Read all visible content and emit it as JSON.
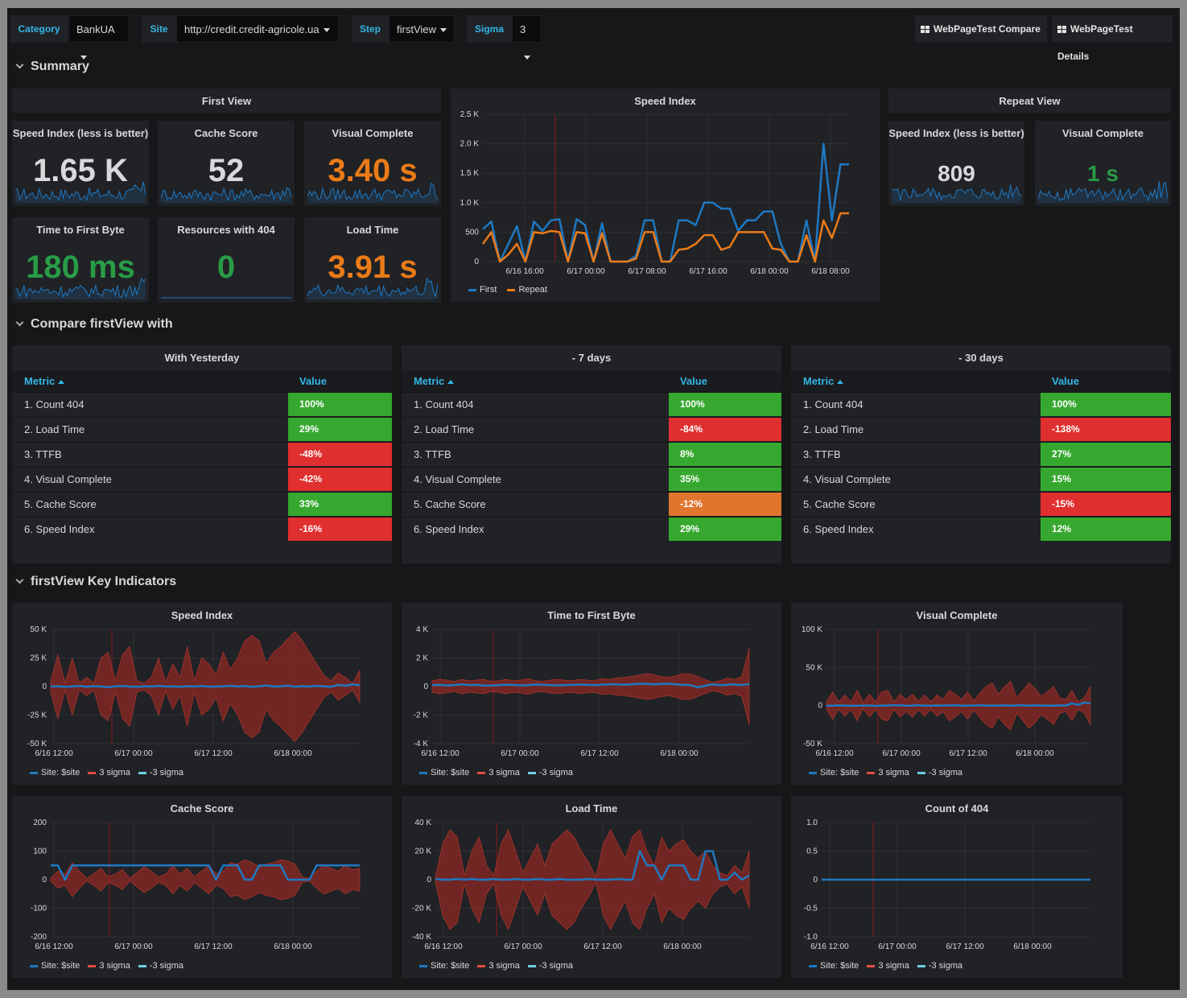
{
  "variables": [
    {
      "label": "Category",
      "value": "BankUA"
    },
    {
      "label": "Site",
      "value": "http://credit.credit-agricole.ua"
    },
    {
      "label": "Step",
      "value": "firstView"
    },
    {
      "label": "Sigma",
      "value": "3"
    }
  ],
  "links": [
    "WebPageTest Compare",
    "WebPageTest Details"
  ],
  "rows": {
    "summary": "Summary",
    "compare": "Compare firstView with",
    "key": "firstView Key Indicators"
  },
  "colors": {
    "green": "#299c46",
    "orange": "#eb7b18",
    "red": "#d44a3a",
    "blue": "#1f78c1",
    "cyan": "#6ed0e0",
    "text": "#d8d9da",
    "accent": "#33b5e5"
  },
  "summary": {
    "first_view_header": "First View",
    "repeat_view_header": "Repeat View",
    "first_stats": [
      {
        "title": "Speed Index (less is better)",
        "value": "1.65 K",
        "color": "#d8d9da"
      },
      {
        "title": "Cache Score",
        "value": "52",
        "color": "#d8d9da"
      },
      {
        "title": "Visual Complete",
        "value": "3.40 s",
        "color": "#eb7b18"
      },
      {
        "title": "Time to First Byte",
        "value": "180 ms",
        "color": "#299c46"
      },
      {
        "title": "Resources with 404",
        "value": "0",
        "color": "#299c46"
      },
      {
        "title": "Load Time",
        "value": "3.91 s",
        "color": "#eb7b18"
      }
    ],
    "repeat_stats": [
      {
        "title": "Speed Index (less is better)",
        "value": "809",
        "color": "#d8d9da"
      },
      {
        "title": "Visual Complete",
        "value": "1 s",
        "color": "#299c46"
      }
    ]
  },
  "compare": {
    "col_metric": "Metric",
    "col_value": "Value",
    "tables": [
      {
        "title": "With Yesterday",
        "rows": [
          {
            "metric": "1. Count 404",
            "value": "100%",
            "status": "green"
          },
          {
            "metric": "2. Load Time",
            "value": "29%",
            "status": "green"
          },
          {
            "metric": "3. TTFB",
            "value": "-48%",
            "status": "red"
          },
          {
            "metric": "4. Visual Complete",
            "value": "-42%",
            "status": "red"
          },
          {
            "metric": "5. Cache Score",
            "value": "33%",
            "status": "green"
          },
          {
            "metric": "6. Speed Index",
            "value": "-16%",
            "status": "red"
          }
        ]
      },
      {
        "title": "- 7 days",
        "rows": [
          {
            "metric": "1. Count 404",
            "value": "100%",
            "status": "green"
          },
          {
            "metric": "2. Load Time",
            "value": "-84%",
            "status": "red"
          },
          {
            "metric": "3. TTFB",
            "value": "8%",
            "status": "green"
          },
          {
            "metric": "4. Visual Complete",
            "value": "35%",
            "status": "green"
          },
          {
            "metric": "5. Cache Score",
            "value": "-12%",
            "status": "orange"
          },
          {
            "metric": "6. Speed Index",
            "value": "29%",
            "status": "green"
          }
        ]
      },
      {
        "title": "- 30 days",
        "rows": [
          {
            "metric": "1. Count 404",
            "value": "100%",
            "status": "green"
          },
          {
            "metric": "2. Load Time",
            "value": "-138%",
            "status": "red"
          },
          {
            "metric": "3. TTFB",
            "value": "27%",
            "status": "green"
          },
          {
            "metric": "4. Visual Complete",
            "value": "15%",
            "status": "green"
          },
          {
            "metric": "5. Cache Score",
            "value": "-15%",
            "status": "red"
          },
          {
            "metric": "6. Speed Index",
            "value": "12%",
            "status": "green"
          }
        ]
      }
    ]
  },
  "chart_data": [
    {
      "type": "line",
      "title": "Speed Index",
      "y_ticks": [
        "2.5 K",
        "2.0 K",
        "1.5 K",
        "1.0 K",
        "500",
        "0"
      ],
      "ylim": [
        0,
        2500
      ],
      "x_ticks": [
        "6/16 16:00",
        "6/17 00:00",
        "6/17 08:00",
        "6/17 16:00",
        "6/18 00:00",
        "6/18 08:00"
      ],
      "series": [
        {
          "name": "First",
          "color": "#1f78c1",
          "values": [
            550,
            680,
            0,
            300,
            600,
            0,
            680,
            520,
            700,
            720,
            0,
            720,
            620,
            0,
            650,
            0,
            0,
            0,
            100,
            700,
            700,
            0,
            0,
            700,
            700,
            620,
            1000,
            1000,
            900,
            900,
            520,
            700,
            700,
            850,
            850,
            300,
            0,
            0,
            700,
            0,
            2000,
            700,
            1650,
            1650
          ]
        },
        {
          "name": "Repeat",
          "color": "#eb7b18",
          "values": [
            300,
            500,
            0,
            120,
            300,
            0,
            500,
            480,
            520,
            500,
            0,
            500,
            480,
            0,
            480,
            0,
            0,
            0,
            50,
            500,
            500,
            0,
            0,
            200,
            220,
            300,
            450,
            450,
            200,
            250,
            500,
            500,
            500,
            500,
            220,
            200,
            0,
            0,
            450,
            0,
            700,
            400,
            820,
            820
          ]
        }
      ]
    },
    {
      "type": "area",
      "title": "Speed Index",
      "y_ticks": [
        "50 K",
        "25 K",
        "0",
        "-25 K",
        "-50 K"
      ],
      "ylim": [
        -50000,
        50000
      ],
      "x_ticks": [
        "6/16 12:00",
        "6/17 00:00",
        "6/17 12:00",
        "6/18 00:00"
      ],
      "legend": [
        "Site: $site",
        "3 sigma",
        "-3 sigma"
      ],
      "band": [
        5000,
        28000,
        3000,
        25000,
        3000,
        8000,
        3000,
        25000,
        30000,
        5000,
        28000,
        35000,
        5000,
        3000,
        8000,
        25000,
        4000,
        20000,
        8000,
        35000,
        5000,
        25000,
        20000,
        10000,
        30000,
        15000,
        25000,
        40000,
        45000,
        40000,
        20000,
        30000,
        35000,
        42000,
        48000,
        40000,
        30000,
        20000,
        10000,
        5000,
        12000,
        8000,
        3000,
        14000
      ],
      "values": [
        0,
        200,
        -300,
        100,
        500,
        -200,
        300,
        0,
        -500,
        200,
        400,
        0,
        -300,
        200,
        0,
        600,
        100,
        0,
        -200,
        300,
        0,
        400,
        -100,
        0,
        200,
        600,
        0,
        500,
        -300,
        200,
        1000,
        0,
        200,
        800,
        -200,
        300,
        0,
        500,
        200,
        -300,
        1500,
        600,
        1800,
        1200
      ]
    },
    {
      "type": "area",
      "title": "Time to First Byte",
      "y_ticks": [
        "4 K",
        "2 K",
        "0",
        "-2 K",
        "-4 K"
      ],
      "ylim": [
        -4000,
        4000
      ],
      "x_ticks": [
        "6/16 12:00",
        "6/17 00:00",
        "6/17 12:00",
        "6/18 00:00"
      ],
      "legend": [
        "Site: $site",
        "3 sigma",
        "-3 sigma"
      ],
      "band": [
        400,
        500,
        450,
        350,
        500,
        400,
        450,
        500,
        350,
        400,
        500,
        400,
        450,
        550,
        400,
        350,
        450,
        500,
        450,
        400,
        500,
        450,
        400,
        550,
        500,
        600,
        650,
        700,
        800,
        900,
        850,
        700,
        650,
        750,
        900,
        900,
        700,
        500,
        300,
        400,
        600,
        500,
        700,
        2700
      ],
      "values": [
        100,
        120,
        80,
        100,
        150,
        100,
        120,
        80,
        60,
        100,
        130,
        120,
        80,
        100,
        140,
        120,
        100,
        80,
        100,
        120,
        140,
        120,
        100,
        130,
        150,
        160,
        120,
        150,
        180,
        200,
        150,
        180,
        200,
        150,
        120,
        100,
        -50,
        50,
        150,
        100,
        120,
        150,
        100,
        180
      ]
    },
    {
      "type": "area",
      "title": "Visual Complete",
      "y_ticks": [
        "100 K",
        "50 K",
        "0",
        "-50 K"
      ],
      "ylim": [
        -50000,
        100000
      ],
      "x_ticks": [
        "6/16 12:00",
        "6/17 00:00",
        "6/17 12:00",
        "6/18 00:00"
      ],
      "legend": [
        "Site: $site",
        "3 sigma",
        "-3 sigma"
      ],
      "band": [
        5000,
        18000,
        5000,
        14000,
        5000,
        20000,
        4000,
        15000,
        5000,
        18000,
        20000,
        5000,
        15000,
        8000,
        15000,
        6000,
        14000,
        5000,
        14000,
        8000,
        20000,
        15000,
        8000,
        18000,
        6000,
        16000,
        25000,
        30000,
        15000,
        25000,
        32000,
        10000,
        20000,
        30000,
        22000,
        12000,
        18000,
        25000,
        10000,
        8000,
        20000,
        5000,
        10000,
        25000
      ],
      "values": [
        0,
        0,
        300,
        0,
        -200,
        0,
        0,
        300,
        -500,
        0,
        200,
        500,
        300,
        -200,
        0,
        500,
        0,
        0,
        200,
        0,
        300,
        500,
        0,
        0,
        200,
        500,
        0,
        200,
        0,
        300,
        0,
        200,
        500,
        0,
        300,
        200,
        0,
        0,
        300,
        0,
        3000,
        1000,
        4000,
        3000
      ]
    },
    {
      "type": "area",
      "title": "Cache Score",
      "y_ticks": [
        "200",
        "100",
        "0",
        "-100",
        "-200"
      ],
      "ylim": [
        -200,
        200
      ],
      "x_ticks": [
        "6/16 12:00",
        "6/17 00:00",
        "6/17 12:00",
        "6/18 00:00"
      ],
      "legend": [
        "Site: $site",
        "3 sigma",
        "-3 sigma"
      ],
      "band": [
        5,
        30,
        20,
        60,
        30,
        5,
        20,
        40,
        10,
        20,
        35,
        5,
        25,
        45,
        30,
        10,
        20,
        50,
        20,
        40,
        10,
        30,
        50,
        20,
        30,
        60,
        55,
        70,
        60,
        45,
        55,
        60,
        70,
        65,
        55,
        10,
        5,
        30,
        50,
        40,
        30,
        50,
        35,
        40
      ],
      "values": [
        50,
        50,
        0,
        50,
        50,
        50,
        50,
        50,
        50,
        50,
        50,
        50,
        50,
        50,
        50,
        50,
        50,
        50,
        50,
        50,
        50,
        50,
        50,
        0,
        50,
        50,
        50,
        0,
        0,
        50,
        50,
        50,
        50,
        0,
        0,
        0,
        0,
        50,
        50,
        50,
        50,
        50,
        50,
        50
      ]
    },
    {
      "type": "area",
      "title": "Load Time",
      "y_ticks": [
        "40 K",
        "20 K",
        "0",
        "-20 K",
        "-40 K"
      ],
      "ylim": [
        -40000,
        40000
      ],
      "x_ticks": [
        "6/16 12:00",
        "6/17 00:00",
        "6/17 12:00",
        "6/18 00:00"
      ],
      "legend": [
        "Site: $site",
        "3 sigma",
        "-3 sigma"
      ],
      "band": [
        2000,
        25000,
        35000,
        30000,
        3000,
        20000,
        30000,
        10000,
        3000,
        25000,
        35000,
        20000,
        5000,
        15000,
        25000,
        10000,
        25000,
        30000,
        35000,
        30000,
        20000,
        12000,
        2000,
        25000,
        35000,
        25000,
        15000,
        30000,
        35000,
        20000,
        10000,
        30000,
        20000,
        25000,
        28000,
        20000,
        15000,
        20000,
        10000,
        5000,
        3000,
        10000,
        5000,
        20000
      ],
      "values": [
        500,
        0,
        0,
        500,
        0,
        500,
        0,
        0,
        500,
        0,
        0,
        500,
        0,
        0,
        500,
        0,
        0,
        500,
        0,
        0,
        0,
        500,
        0,
        0,
        0,
        500,
        0,
        0,
        20000,
        10000,
        10000,
        0,
        10000,
        10000,
        10000,
        0,
        0,
        20000,
        20000,
        0,
        0,
        5000,
        0,
        3000
      ]
    },
    {
      "type": "line",
      "title": "Count of 404",
      "y_ticks": [
        "1.0",
        "0.5",
        "0",
        "-0.5",
        "-1.0"
      ],
      "ylim": [
        -1,
        1
      ],
      "x_ticks": [
        "6/16 12:00",
        "6/17 00:00",
        "6/17 12:00",
        "6/18 00:00"
      ],
      "legend": [
        "Site: $site",
        "3 sigma",
        "-3 sigma"
      ],
      "values": [
        0,
        0,
        0,
        0,
        0,
        0,
        0,
        0,
        0,
        0,
        0,
        0,
        0,
        0,
        0,
        0,
        0,
        0,
        0,
        0,
        0,
        0
      ]
    }
  ]
}
